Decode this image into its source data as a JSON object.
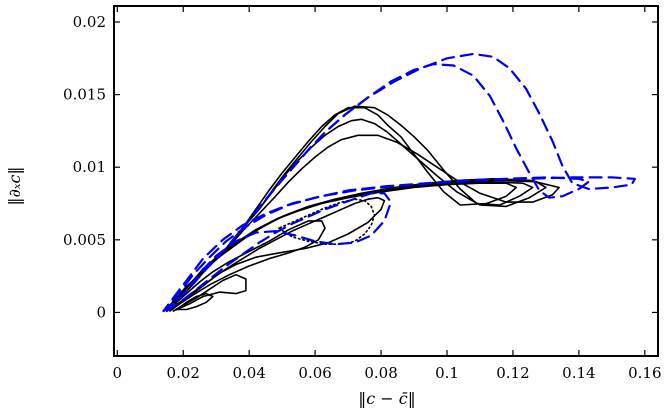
{
  "chart_data": {
    "type": "line",
    "xlabel": "‖c − c̄‖",
    "ylabel": "‖∂ₓc‖",
    "xlim": [
      -0.001,
      0.164
    ],
    "ylim": [
      -0.003,
      0.0211
    ],
    "xticks": [
      "0",
      "0.02",
      "0.04",
      "0.06",
      "0.08",
      "0.1",
      "0.12",
      "0.14",
      "0.16"
    ],
    "yticks": [
      "0",
      "0.005",
      "0.01",
      "0.015",
      "0.02"
    ],
    "colors": {
      "black": "#000000",
      "blue": "#0000ee"
    },
    "series": [
      {
        "color": "black",
        "dash": "solid",
        "x": [
          0.014,
          0.018,
          0.022,
          0.027,
          0.033,
          0.038,
          0.042,
          0.046,
          0.05,
          0.054,
          0.058,
          0.062,
          0.066,
          0.07,
          0.075,
          0.079,
          0.082,
          0.086,
          0.089,
          0.094,
          0.099,
          0.104,
          0.112,
          0.118,
          0.121,
          0.118,
          0.11,
          0.1,
          0.09,
          0.08,
          0.07,
          0.062,
          0.055,
          0.048,
          0.042,
          0.036,
          0.03,
          0.025,
          0.021,
          0.018,
          0.016,
          0.014
        ],
        "y": [
          0.0001,
          0.0008,
          0.0017,
          0.003,
          0.0044,
          0.0058,
          0.0071,
          0.0084,
          0.0096,
          0.0107,
          0.0118,
          0.0128,
          0.0136,
          0.0141,
          0.0141,
          0.0136,
          0.0129,
          0.0121,
          0.0112,
          0.0097,
          0.0083,
          0.0074,
          0.0075,
          0.008,
          0.0086,
          0.0089,
          0.0089,
          0.0088,
          0.0086,
          0.0083,
          0.0079,
          0.0075,
          0.007,
          0.0064,
          0.0057,
          0.0048,
          0.0038,
          0.0027,
          0.0017,
          0.0009,
          0.0004,
          0.0001
        ]
      },
      {
        "color": "black",
        "dash": "solid",
        "x": [
          0.014,
          0.018,
          0.022,
          0.027,
          0.033,
          0.038,
          0.043,
          0.047,
          0.051,
          0.055,
          0.059,
          0.063,
          0.067,
          0.072,
          0.078,
          0.082,
          0.086,
          0.09,
          0.094,
          0.099,
          0.104,
          0.109,
          0.116,
          0.122,
          0.126,
          0.123,
          0.112,
          0.102,
          0.092,
          0.082,
          0.072,
          0.063,
          0.056,
          0.049,
          0.043,
          0.037,
          0.031,
          0.026,
          0.021,
          0.018,
          0.016,
          0.014
        ],
        "y": [
          0.0001,
          0.0008,
          0.0017,
          0.003,
          0.0044,
          0.0058,
          0.0071,
          0.0084,
          0.0096,
          0.0107,
          0.0118,
          0.0128,
          0.0137,
          0.0142,
          0.0141,
          0.0136,
          0.0129,
          0.0121,
          0.0112,
          0.0098,
          0.0085,
          0.0075,
          0.0074,
          0.008,
          0.0086,
          0.0089,
          0.009,
          0.0089,
          0.0087,
          0.0084,
          0.008,
          0.0076,
          0.0071,
          0.0065,
          0.0058,
          0.0049,
          0.0039,
          0.0028,
          0.0018,
          0.001,
          0.0005,
          0.0001
        ]
      },
      {
        "color": "black",
        "dash": "solid",
        "x": [
          0.014,
          0.018,
          0.022,
          0.027,
          0.033,
          0.038,
          0.043,
          0.047,
          0.051,
          0.055,
          0.059,
          0.063,
          0.067,
          0.071,
          0.074,
          0.078,
          0.082,
          0.086,
          0.091,
          0.097,
          0.103,
          0.11,
          0.118,
          0.125,
          0.13,
          0.127,
          0.114,
          0.104,
          0.094,
          0.084,
          0.074,
          0.065,
          0.057,
          0.05,
          0.044,
          0.038,
          0.032,
          0.026,
          0.022,
          0.018,
          0.016,
          0.014
        ],
        "y": [
          0.0001,
          0.0008,
          0.0017,
          0.003,
          0.0044,
          0.0058,
          0.0071,
          0.0083,
          0.0095,
          0.0105,
          0.0114,
          0.0122,
          0.0128,
          0.0132,
          0.0133,
          0.013,
          0.0124,
          0.0116,
          0.0106,
          0.0094,
          0.0083,
          0.0074,
          0.0073,
          0.0079,
          0.0086,
          0.009,
          0.0091,
          0.009,
          0.0088,
          0.0085,
          0.0081,
          0.0077,
          0.0072,
          0.0066,
          0.0059,
          0.005,
          0.004,
          0.0029,
          0.0019,
          0.001,
          0.0005,
          0.0001
        ]
      },
      {
        "color": "black",
        "dash": "solid",
        "x": [
          0.014,
          0.018,
          0.022,
          0.027,
          0.033,
          0.038,
          0.043,
          0.048,
          0.052,
          0.056,
          0.06,
          0.064,
          0.068,
          0.073,
          0.079,
          0.085,
          0.091,
          0.097,
          0.103,
          0.11,
          0.118,
          0.126,
          0.132,
          0.134,
          0.125,
          0.114,
          0.104,
          0.094,
          0.084,
          0.074,
          0.066,
          0.058,
          0.051,
          0.045,
          0.038,
          0.032,
          0.026,
          0.022,
          0.018,
          0.016,
          0.014
        ],
        "y": [
          0.0001,
          0.0008,
          0.0017,
          0.003,
          0.0043,
          0.0056,
          0.0068,
          0.008,
          0.009,
          0.0099,
          0.0107,
          0.0114,
          0.0119,
          0.0122,
          0.0122,
          0.0117,
          0.0109,
          0.01,
          0.0091,
          0.0082,
          0.0076,
          0.0076,
          0.0081,
          0.0086,
          0.0091,
          0.0092,
          0.0091,
          0.0089,
          0.0086,
          0.0082,
          0.0078,
          0.0073,
          0.0067,
          0.006,
          0.0051,
          0.0041,
          0.003,
          0.0019,
          0.001,
          0.0005,
          0.0001
        ]
      },
      {
        "color": "black",
        "dash": "solid",
        "x": [
          0.015,
          0.019,
          0.023,
          0.028,
          0.033,
          0.038,
          0.043,
          0.048,
          0.053,
          0.058,
          0.063,
          0.068,
          0.072,
          0.076,
          0.079,
          0.081,
          0.08,
          0.076,
          0.07,
          0.064,
          0.057,
          0.049,
          0.042,
          0.036,
          0.031,
          0.027,
          0.023,
          0.02,
          0.017,
          0.015
        ],
        "y": [
          0.0001,
          0.0007,
          0.0014,
          0.0022,
          0.003,
          0.0037,
          0.0044,
          0.005,
          0.0056,
          0.0061,
          0.0066,
          0.0071,
          0.0075,
          0.0078,
          0.0079,
          0.0077,
          0.0071,
          0.0062,
          0.0054,
          0.0048,
          0.0044,
          0.0041,
          0.0038,
          0.0033,
          0.0027,
          0.002,
          0.0013,
          0.0008,
          0.0004,
          0.0001
        ]
      },
      {
        "color": "black",
        "dash": "solid",
        "x": [
          0.016,
          0.019,
          0.023,
          0.028,
          0.034,
          0.04,
          0.046,
          0.052,
          0.057,
          0.061,
          0.063,
          0.062,
          0.058,
          0.052,
          0.046,
          0.04,
          0.034,
          0.029,
          0.025,
          0.021,
          0.018,
          0.016
        ],
        "y": [
          0.0001,
          0.0006,
          0.0012,
          0.0019,
          0.0026,
          0.0032,
          0.0037,
          0.0041,
          0.0045,
          0.005,
          0.0058,
          0.0063,
          0.0063,
          0.0057,
          0.0049,
          0.0042,
          0.0035,
          0.0028,
          0.0021,
          0.0013,
          0.0007,
          0.0001
        ]
      },
      {
        "color": "black",
        "dash": "solid",
        "x": [
          0.017,
          0.02,
          0.024,
          0.028,
          0.032,
          0.036,
          0.039,
          0.039,
          0.036,
          0.031,
          0.026,
          0.022,
          0.019,
          0.017
        ],
        "y": [
          0.0001,
          0.0005,
          0.001,
          0.0016,
          0.0022,
          0.0026,
          0.0023,
          0.0015,
          0.0013,
          0.0014,
          0.0011,
          0.0006,
          0.0003,
          0.0001
        ]
      },
      {
        "color": "black",
        "dash": "solid",
        "x": [
          0.018,
          0.021,
          0.024,
          0.027,
          0.029,
          0.027,
          0.024,
          0.021,
          0.018
        ],
        "y": [
          0.0002,
          0.0007,
          0.0011,
          0.0013,
          0.0011,
          0.0007,
          0.0004,
          0.0002,
          0.0002
        ]
      },
      {
        "color": "black",
        "dash": "dotted",
        "x": [
          0.049,
          0.053,
          0.058,
          0.063,
          0.068,
          0.072,
          0.075,
          0.077,
          0.078,
          0.077,
          0.075,
          0.072,
          0.068,
          0.063,
          0.058,
          0.053,
          0.049
        ],
        "y": [
          0.0058,
          0.0052,
          0.0049,
          0.0047,
          0.0047,
          0.0049,
          0.0054,
          0.006,
          0.0067,
          0.0073,
          0.0077,
          0.0078,
          0.0076,
          0.0072,
          0.0067,
          0.0062,
          0.0058
        ]
      },
      {
        "color": "blue",
        "dash": "dashed",
        "x": [
          0.014,
          0.018,
          0.022,
          0.027,
          0.033,
          0.038,
          0.043,
          0.048,
          0.053,
          0.058,
          0.063,
          0.069,
          0.076,
          0.083,
          0.09,
          0.096,
          0.102,
          0.108,
          0.113,
          0.117,
          0.121,
          0.125,
          0.128,
          0.131,
          0.135,
          0.14,
          0.143,
          0.14,
          0.13,
          0.118,
          0.106,
          0.094,
          0.082,
          0.07,
          0.06,
          0.052,
          0.045,
          0.039,
          0.033,
          0.028,
          0.023,
          0.019,
          0.016,
          0.014
        ],
        "y": [
          0.0001,
          0.0008,
          0.0017,
          0.003,
          0.0044,
          0.0058,
          0.0072,
          0.0086,
          0.0099,
          0.0112,
          0.0124,
          0.0136,
          0.0148,
          0.0159,
          0.0167,
          0.0171,
          0.017,
          0.0163,
          0.0149,
          0.0132,
          0.0113,
          0.0096,
          0.0084,
          0.0079,
          0.008,
          0.0085,
          0.009,
          0.0092,
          0.0093,
          0.0092,
          0.0091,
          0.0089,
          0.0087,
          0.0084,
          0.0079,
          0.0074,
          0.0067,
          0.0059,
          0.0049,
          0.0038,
          0.0026,
          0.0014,
          0.0006,
          0.0001
        ]
      },
      {
        "color": "blue",
        "dash": "dashed",
        "x": [
          0.014,
          0.018,
          0.022,
          0.027,
          0.033,
          0.038,
          0.043,
          0.048,
          0.053,
          0.058,
          0.063,
          0.069,
          0.076,
          0.084,
          0.092,
          0.1,
          0.108,
          0.114,
          0.119,
          0.124,
          0.128,
          0.132,
          0.135,
          0.138,
          0.143,
          0.15,
          0.156,
          0.157,
          0.15,
          0.138,
          0.124,
          0.11,
          0.096,
          0.084,
          0.072,
          0.062,
          0.053,
          0.045,
          0.038,
          0.032,
          0.026,
          0.021,
          0.017,
          0.014
        ],
        "y": [
          0.0001,
          0.0008,
          0.0017,
          0.003,
          0.0044,
          0.0058,
          0.0072,
          0.0086,
          0.0099,
          0.0112,
          0.0124,
          0.0136,
          0.0148,
          0.0159,
          0.0168,
          0.0175,
          0.0178,
          0.0176,
          0.0168,
          0.0154,
          0.0137,
          0.0118,
          0.0101,
          0.0089,
          0.0085,
          0.0086,
          0.0088,
          0.0092,
          0.0093,
          0.0093,
          0.0092,
          0.0091,
          0.0089,
          0.0087,
          0.0084,
          0.008,
          0.0075,
          0.0068,
          0.006,
          0.005,
          0.0037,
          0.0022,
          0.001,
          0.0001
        ]
      },
      {
        "color": "blue",
        "dash": "dashed",
        "x": [
          0.015,
          0.019,
          0.023,
          0.028,
          0.033,
          0.038,
          0.043,
          0.048,
          0.053,
          0.058,
          0.063,
          0.068,
          0.073,
          0.077,
          0.081,
          0.083,
          0.081,
          0.077,
          0.072,
          0.066,
          0.06,
          0.054,
          0.048,
          0.042,
          0.036,
          0.03,
          0.025,
          0.021,
          0.017,
          0.015
        ],
        "y": [
          0.0001,
          0.0007,
          0.0014,
          0.0023,
          0.0032,
          0.004,
          0.0048,
          0.0055,
          0.0061,
          0.0066,
          0.0071,
          0.0075,
          0.0079,
          0.0082,
          0.0082,
          0.0076,
          0.0063,
          0.0053,
          0.0048,
          0.0047,
          0.0049,
          0.0053,
          0.0056,
          0.0055,
          0.0049,
          0.0039,
          0.0027,
          0.0015,
          0.0006,
          0.0001
        ]
      }
    ]
  }
}
